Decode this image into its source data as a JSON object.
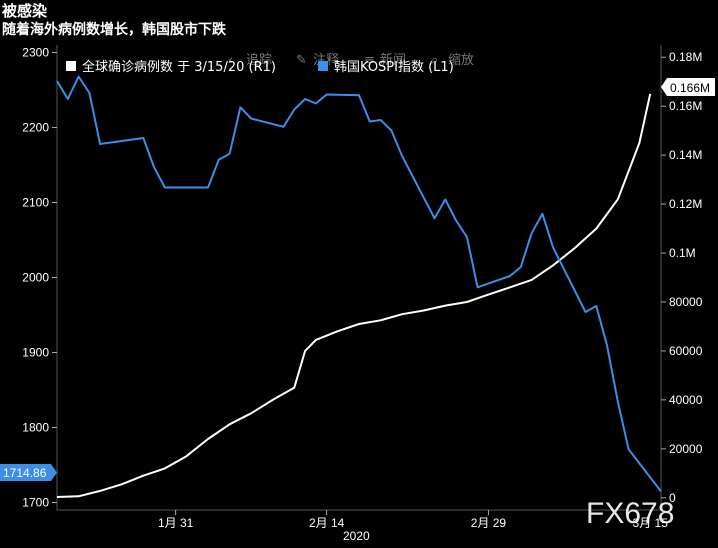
{
  "header": {
    "title": "被感染",
    "subtitle": "随着海外病例数增长，韩国股市下跌"
  },
  "toolbar": {
    "items": [
      "追踪",
      "注释",
      "新闻",
      "缩放"
    ]
  },
  "watermark": "FX678",
  "chart_data": {
    "type": "line",
    "title": "被感染",
    "subtitle": "随着海外病例数增长，韩国股市下跌",
    "legend_position": "top-left",
    "grid": false,
    "x_axis": {
      "tick_labels": [
        "1月 31",
        "2月 14",
        "2月 29",
        "3月 15"
      ],
      "year_label": "2020",
      "range": [
        "2020-01-20",
        "2020-03-16"
      ]
    },
    "left_axis": {
      "ticks": [
        1700,
        1800,
        1900,
        2000,
        2100,
        2200,
        2300
      ],
      "range": [
        1690,
        2310
      ],
      "current_value_label": "1714.86"
    },
    "right_axis": {
      "tick_labels": [
        "0",
        "20000",
        "40000",
        "60000",
        "80000",
        "0.1M",
        "0.12M",
        "0.14M",
        "0.16M",
        "0.18M"
      ],
      "ticks": [
        0,
        20000,
        40000,
        60000,
        80000,
        100000,
        120000,
        140000,
        160000,
        180000
      ],
      "range": [
        -5000,
        185000
      ],
      "current_value_label": "0.166M"
    },
    "series": [
      {
        "name": "全球确诊病例数 于 3/15/20 (R1)",
        "color": "#ffffff",
        "axis": "right",
        "x": [
          "2020-01-20",
          "2020-01-22",
          "2020-01-24",
          "2020-01-26",
          "2020-01-28",
          "2020-01-30",
          "2020-02-01",
          "2020-02-03",
          "2020-02-05",
          "2020-02-07",
          "2020-02-09",
          "2020-02-11",
          "2020-02-12",
          "2020-02-13",
          "2020-02-15",
          "2020-02-17",
          "2020-02-19",
          "2020-02-21",
          "2020-02-23",
          "2020-02-25",
          "2020-02-27",
          "2020-02-29",
          "2020-03-02",
          "2020-03-04",
          "2020-03-06",
          "2020-03-08",
          "2020-03-10",
          "2020-03-12",
          "2020-03-14",
          "2020-03-15"
        ],
        "values": [
          300,
          600,
          2800,
          5500,
          9000,
          12000,
          17000,
          24000,
          30000,
          34500,
          40000,
          45000,
          60000,
          64500,
          68000,
          71000,
          72500,
          75000,
          76500,
          78500,
          80000,
          83000,
          86000,
          89000,
          95000,
          102000,
          110000,
          122000,
          145000,
          165000
        ]
      },
      {
        "name": "韩国KOSPI指数 (L1)",
        "color": "#3d8ee6",
        "axis": "left",
        "x": [
          "2020-01-20",
          "2020-01-21",
          "2020-01-22",
          "2020-01-23",
          "2020-01-24",
          "2020-01-28",
          "2020-01-29",
          "2020-01-30",
          "2020-01-31",
          "2020-02-03",
          "2020-02-04",
          "2020-02-05",
          "2020-02-06",
          "2020-02-07",
          "2020-02-10",
          "2020-02-11",
          "2020-02-12",
          "2020-02-13",
          "2020-02-14",
          "2020-02-17",
          "2020-02-18",
          "2020-02-19",
          "2020-02-20",
          "2020-02-21",
          "2020-02-24",
          "2020-02-25",
          "2020-02-26",
          "2020-02-27",
          "2020-02-28",
          "2020-03-02",
          "2020-03-03",
          "2020-03-04",
          "2020-03-05",
          "2020-03-06",
          "2020-03-09",
          "2020-03-10",
          "2020-03-11",
          "2020-03-12",
          "2020-03-13",
          "2020-03-16"
        ],
        "values": [
          2262,
          2238,
          2268,
          2246,
          2178,
          2186,
          2147,
          2120,
          2120,
          2120,
          2157,
          2165,
          2227,
          2212,
          2201,
          2224,
          2238,
          2232,
          2244,
          2243,
          2208,
          2210,
          2196,
          2162,
          2079,
          2104,
          2076,
          2054,
          1987,
          2002,
          2014,
          2059,
          2085,
          2040,
          1954,
          1962,
          1909,
          1834,
          1771,
          1714.86
        ]
      }
    ]
  }
}
